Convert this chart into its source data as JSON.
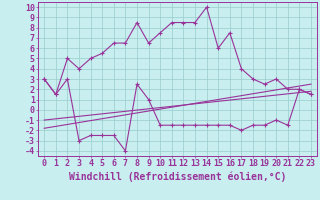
{
  "xlabel": "Windchill (Refroidissement éolien,°C)",
  "x_ticks": [
    0,
    1,
    2,
    3,
    4,
    5,
    6,
    7,
    8,
    9,
    10,
    11,
    12,
    13,
    14,
    15,
    16,
    17,
    18,
    19,
    20,
    21,
    22,
    23
  ],
  "line1_x": [
    0,
    1,
    2,
    3,
    4,
    5,
    6,
    7,
    8,
    9,
    10,
    11,
    12,
    13,
    14,
    15,
    16,
    17,
    18,
    19,
    20,
    21,
    22,
    23
  ],
  "line1_y": [
    3.0,
    1.5,
    5.0,
    4.0,
    5.0,
    5.5,
    6.5,
    6.5,
    8.5,
    6.5,
    7.5,
    8.5,
    8.5,
    8.5,
    10.0,
    6.0,
    7.5,
    4.0,
    3.0,
    2.5,
    3.0,
    2.0,
    2.0,
    1.5
  ],
  "line2_x": [
    0,
    1,
    2,
    3,
    4,
    5,
    6,
    7,
    8,
    9,
    10,
    11,
    12,
    13,
    14,
    15,
    16,
    17,
    18,
    19,
    20,
    21,
    22,
    23
  ],
  "line2_y": [
    3.0,
    1.5,
    3.0,
    -3.0,
    -2.5,
    -2.5,
    -2.5,
    -4.0,
    2.5,
    1.0,
    -1.5,
    -1.5,
    -1.5,
    -1.5,
    -1.5,
    -1.5,
    -1.5,
    -2.0,
    -1.5,
    -1.5,
    -1.0,
    -1.5,
    2.0,
    1.5
  ],
  "line3_x": [
    0,
    23
  ],
  "line3_y": [
    -1.8,
    2.5
  ],
  "line4_x": [
    0,
    23
  ],
  "line4_y": [
    -1.0,
    1.8
  ],
  "ylim": [
    -4.5,
    10.5
  ],
  "yticks": [
    10,
    9,
    8,
    7,
    6,
    5,
    4,
    3,
    2,
    1,
    0,
    -1,
    -2,
    -3,
    -4
  ],
  "line_color": "#993399",
  "bg_color": "#c8eef0",
  "grid_color": "#99cccc",
  "xlabel_fontsize": 7,
  "tick_fontsize": 6
}
